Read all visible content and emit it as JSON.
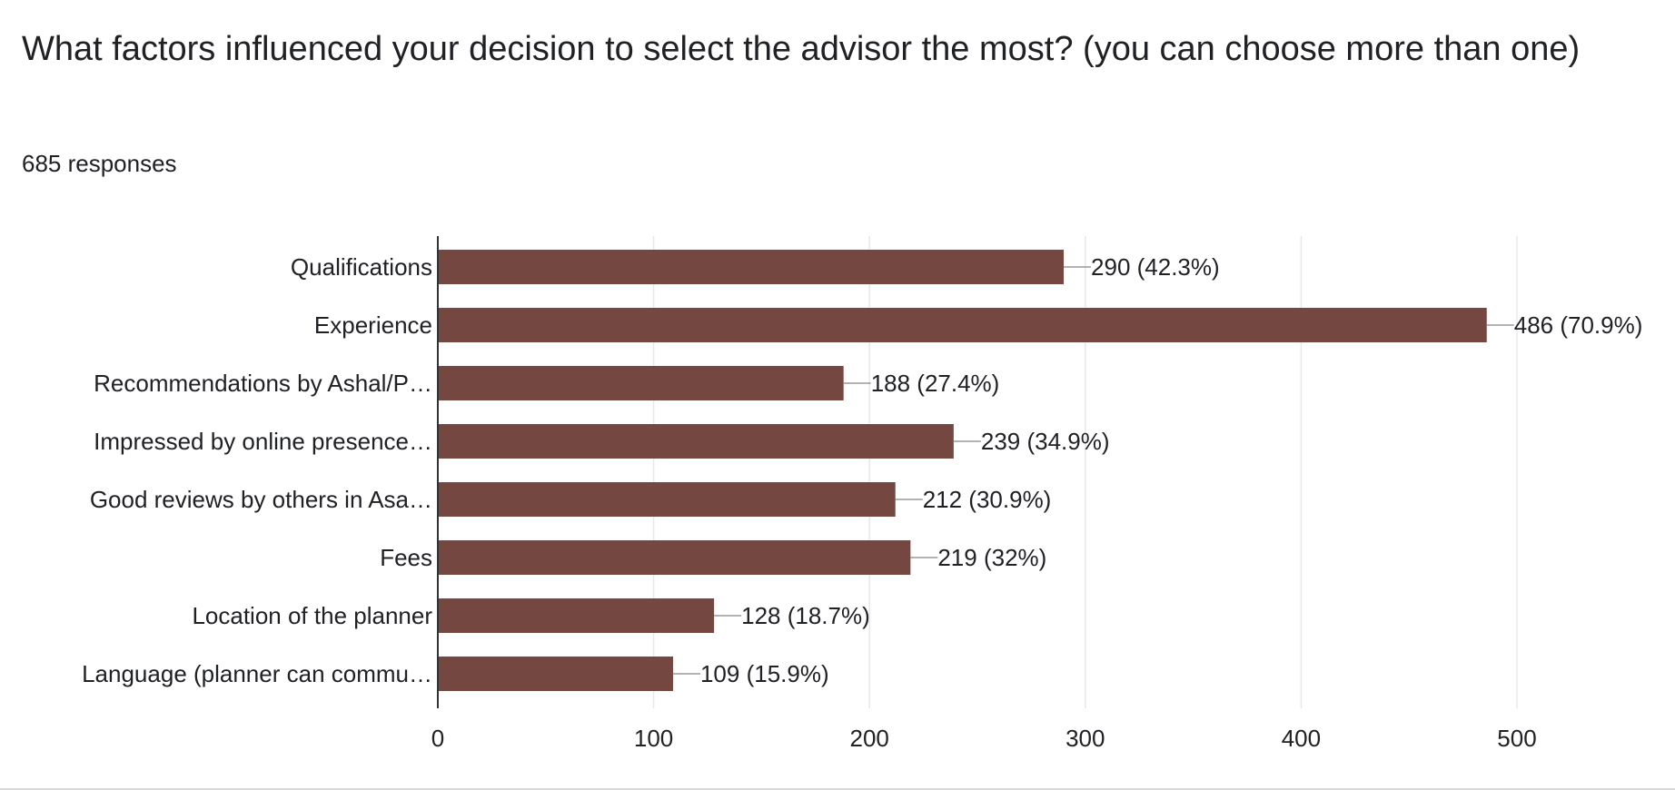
{
  "title": "What factors influenced your decision to select the advisor the most? (you can choose more than one)",
  "responses_label": "685 responses",
  "colors": {
    "bar": "#744740",
    "grid": "#e8e8e8",
    "axis": "#333333",
    "connector": "#999999",
    "text": "#202124"
  },
  "chart_data": {
    "type": "bar",
    "orientation": "horizontal",
    "title": "What factors influenced your decision to select the advisor the most? (you can choose more than one)",
    "xlabel": "",
    "ylabel": "",
    "xlim": [
      0,
      500
    ],
    "x_ticks": [
      0,
      100,
      200,
      300,
      400,
      500
    ],
    "grid": true,
    "categories": [
      "Qualifications",
      "Experience",
      "Recommendations by Ashal/P…",
      "Impressed by online presence…",
      "Good reviews by others in Asa…",
      "Fees",
      "Location of the planner",
      "Language (planner can commu…"
    ],
    "values": [
      290,
      486,
      188,
      239,
      212,
      219,
      128,
      109
    ],
    "data_labels": [
      "290 (42.3%)",
      "486 (70.9%)",
      "188 (27.4%)",
      "239 (34.9%)",
      "212 (30.9%)",
      "219 (32%)",
      "128 (18.7%)",
      "109 (15.9%)"
    ]
  }
}
